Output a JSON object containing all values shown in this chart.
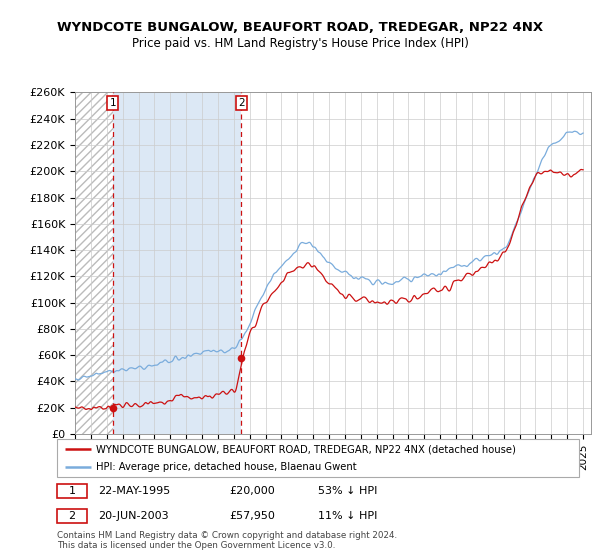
{
  "title": "WYNDCOTE BUNGALOW, BEAUFORT ROAD, TREDEGAR, NP22 4NX",
  "subtitle": "Price paid vs. HM Land Registry's House Price Index (HPI)",
  "ylim": [
    0,
    260000
  ],
  "yticks": [
    0,
    20000,
    40000,
    60000,
    80000,
    100000,
    120000,
    140000,
    160000,
    180000,
    200000,
    220000,
    240000,
    260000
  ],
  "ytick_labels": [
    "£0",
    "£20K",
    "£40K",
    "£60K",
    "£80K",
    "£100K",
    "£120K",
    "£140K",
    "£160K",
    "£180K",
    "£200K",
    "£220K",
    "£240K",
    "£260K"
  ],
  "xlim_start": 1993,
  "xlim_end": 2025.5,
  "hpi_color": "#7aacdc",
  "property_color": "#cc1111",
  "vline_color": "#cc1111",
  "hatch_color": "#bbbbbb",
  "shade_color": "#dce8f5",
  "marker1_year": 1995.38,
  "marker1_price": 20000,
  "marker2_year": 2003.47,
  "marker2_price": 57950,
  "legend_line1": "WYNDCOTE BUNGALOW, BEAUFORT ROAD, TREDEGAR, NP22 4NX (detached house)",
  "legend_line2": "HPI: Average price, detached house, Blaenau Gwent",
  "table_row1_num": "1",
  "table_row1_date": "22-MAY-1995",
  "table_row1_price": "£20,000",
  "table_row1_hpi": "53% ↓ HPI",
  "table_row2_num": "2",
  "table_row2_date": "20-JUN-2003",
  "table_row2_price": "£57,950",
  "table_row2_hpi": "11% ↓ HPI",
  "footnote_line1": "Contains HM Land Registry data © Crown copyright and database right 2024.",
  "footnote_line2": "This data is licensed under the Open Government Licence v3.0."
}
